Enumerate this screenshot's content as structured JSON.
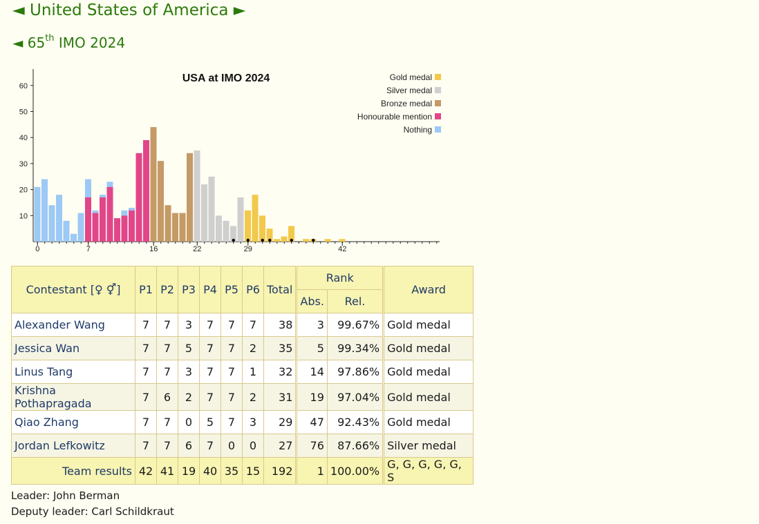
{
  "nav": {
    "country": "United States of America",
    "imo_ordinal": "65",
    "imo_suffix": "th",
    "imo_rest": " IMO 2024",
    "prev_arrow": "◄",
    "next_arrow": "►"
  },
  "chart_data": {
    "type": "bar",
    "title": "USA at IMO 2024",
    "xlabel": "",
    "ylabel": "",
    "ylim": [
      0,
      65
    ],
    "xlim": [
      0,
      42
    ],
    "y_ticks": [
      10,
      20,
      30,
      40,
      50,
      60
    ],
    "x_tick_labels": [
      "0",
      "7",
      "16",
      "22",
      "29",
      "42"
    ],
    "x_tick_values": [
      0,
      7,
      16,
      22,
      29,
      42
    ],
    "legend_position": "top-right",
    "legend": [
      {
        "name": "Gold medal",
        "color": "#f2c94c"
      },
      {
        "name": "Silver medal",
        "color": "#cfcfcf"
      },
      {
        "name": "Bronze medal",
        "color": "#c49a66"
      },
      {
        "name": "Honourable mention",
        "color": "#e2468a"
      },
      {
        "name": "Nothing",
        "color": "#9cc9f5"
      }
    ],
    "bars": [
      {
        "score": 0,
        "count": 21,
        "category": "Nothing"
      },
      {
        "score": 1,
        "count": 24,
        "category": "Nothing"
      },
      {
        "score": 2,
        "count": 14,
        "category": "Nothing"
      },
      {
        "score": 3,
        "count": 18,
        "category": "Nothing"
      },
      {
        "score": 4,
        "count": 8,
        "category": "Nothing"
      },
      {
        "score": 5,
        "count": 3,
        "category": "Nothing"
      },
      {
        "score": 6,
        "count": 11,
        "category": "Nothing"
      },
      {
        "score": 7,
        "count": 24,
        "category": "Honourable mention",
        "hm": 17
      },
      {
        "score": 8,
        "count": 12,
        "category": "Honourable mention",
        "hm": 11
      },
      {
        "score": 9,
        "count": 18,
        "category": "Honourable mention",
        "hm": 17
      },
      {
        "score": 10,
        "count": 23,
        "category": "Honourable mention",
        "hm": 21
      },
      {
        "score": 11,
        "count": 9,
        "category": "Honourable mention",
        "hm": 9
      },
      {
        "score": 12,
        "count": 12,
        "category": "Honourable mention",
        "hm": 10
      },
      {
        "score": 13,
        "count": 13,
        "category": "Honourable mention",
        "hm": 12
      },
      {
        "score": 14,
        "count": 34,
        "category": "Honourable mention",
        "hm": 34
      },
      {
        "score": 15,
        "count": 39,
        "category": "Honourable mention",
        "hm": 39
      },
      {
        "score": 16,
        "count": 44,
        "category": "Bronze medal"
      },
      {
        "score": 17,
        "count": 31,
        "category": "Bronze medal"
      },
      {
        "score": 18,
        "count": 14,
        "category": "Bronze medal"
      },
      {
        "score": 19,
        "count": 11,
        "category": "Bronze medal"
      },
      {
        "score": 20,
        "count": 11,
        "category": "Bronze medal"
      },
      {
        "score": 21,
        "count": 34,
        "category": "Bronze medal"
      },
      {
        "score": 22,
        "count": 35,
        "category": "Silver medal"
      },
      {
        "score": 23,
        "count": 22,
        "category": "Silver medal"
      },
      {
        "score": 24,
        "count": 25,
        "category": "Silver medal"
      },
      {
        "score": 25,
        "count": 10,
        "category": "Silver medal"
      },
      {
        "score": 26,
        "count": 8,
        "category": "Silver medal"
      },
      {
        "score": 27,
        "count": 6,
        "category": "Silver medal"
      },
      {
        "score": 28,
        "count": 17,
        "category": "Silver medal"
      },
      {
        "score": 29,
        "count": 12,
        "category": "Gold medal"
      },
      {
        "score": 30,
        "count": 18,
        "category": "Gold medal"
      },
      {
        "score": 31,
        "count": 10,
        "category": "Gold medal"
      },
      {
        "score": 32,
        "count": 5,
        "category": "Gold medal"
      },
      {
        "score": 33,
        "count": 1,
        "category": "Gold medal"
      },
      {
        "score": 34,
        "count": 2,
        "category": "Gold medal"
      },
      {
        "score": 35,
        "count": 6,
        "category": "Gold medal"
      },
      {
        "score": 36,
        "count": 0,
        "category": "Gold medal"
      },
      {
        "score": 37,
        "count": 1,
        "category": "Gold medal"
      },
      {
        "score": 38,
        "count": 1,
        "category": "Gold medal"
      },
      {
        "score": 39,
        "count": 0,
        "category": "Gold medal"
      },
      {
        "score": 40,
        "count": 1,
        "category": "Gold medal"
      },
      {
        "score": 41,
        "count": 0,
        "category": "Gold medal"
      },
      {
        "score": 42,
        "count": 1,
        "category": "Gold medal"
      }
    ],
    "usa_scores": [
      27,
      29,
      31,
      32,
      35,
      38
    ]
  },
  "table": {
    "header": {
      "contestant": "Contestant [♀ ⚥]",
      "problems": [
        "P1",
        "P2",
        "P3",
        "P4",
        "P5",
        "P6"
      ],
      "total": "Total",
      "rank": "Rank",
      "abs": "Abs.",
      "rel": "Rel.",
      "award": "Award"
    },
    "rows": [
      {
        "name": "Alexander Wang",
        "p": [
          "7",
          "7",
          "3",
          "7",
          "7",
          "7"
        ],
        "total": "38",
        "abs": "3",
        "rel": "99.67%",
        "award": "Gold medal"
      },
      {
        "name": "Jessica Wan",
        "p": [
          "7",
          "7",
          "5",
          "7",
          "7",
          "2"
        ],
        "total": "35",
        "abs": "5",
        "rel": "99.34%",
        "award": "Gold medal"
      },
      {
        "name": "Linus Tang",
        "p": [
          "7",
          "7",
          "3",
          "7",
          "7",
          "1"
        ],
        "total": "32",
        "abs": "14",
        "rel": "97.86%",
        "award": "Gold medal"
      },
      {
        "name": "Krishna Pothapragada",
        "p": [
          "7",
          "6",
          "2",
          "7",
          "7",
          "2"
        ],
        "total": "31",
        "abs": "19",
        "rel": "97.04%",
        "award": "Gold medal"
      },
      {
        "name": "Qiao Zhang",
        "p": [
          "7",
          "7",
          "0",
          "5",
          "7",
          "3"
        ],
        "total": "29",
        "abs": "47",
        "rel": "92.43%",
        "award": "Gold medal"
      },
      {
        "name": "Jordan Lefkowitz",
        "p": [
          "7",
          "7",
          "6",
          "7",
          "0",
          "0"
        ],
        "total": "27",
        "abs": "76",
        "rel": "87.66%",
        "award": "Silver medal"
      }
    ],
    "team": {
      "label": "Team results",
      "p": [
        "42",
        "41",
        "19",
        "40",
        "35",
        "15"
      ],
      "total": "192",
      "abs": "1",
      "rel": "100.00%",
      "award": "G, G, G, G, G, S"
    }
  },
  "footer": {
    "leader": "Leader: John Berman",
    "deputy": "Deputy leader: Carl Schildkraut"
  }
}
